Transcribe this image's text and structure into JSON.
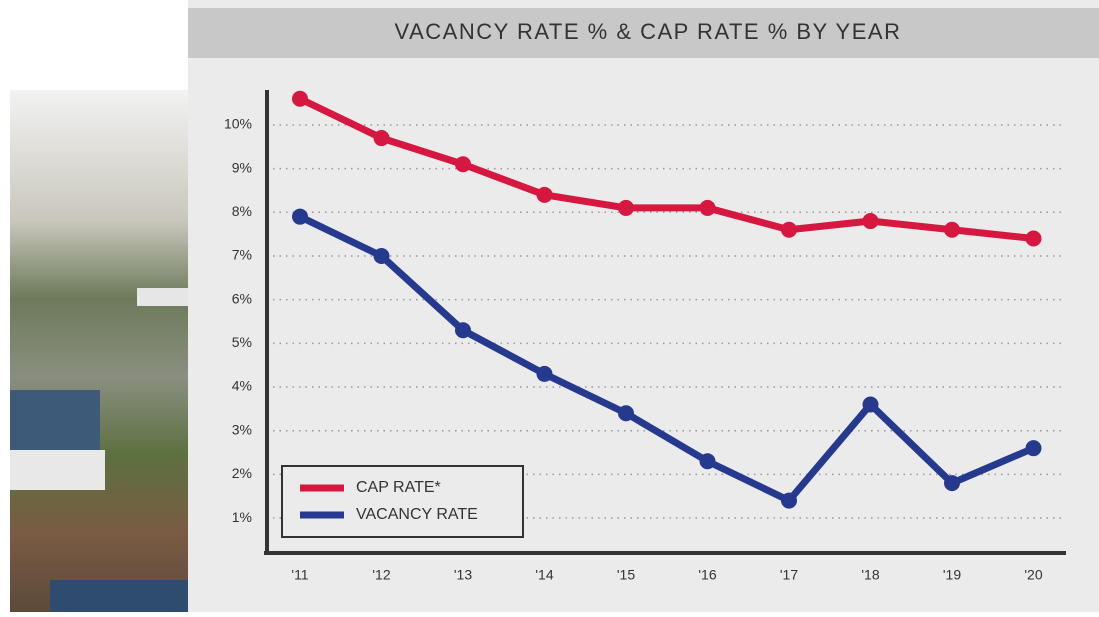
{
  "chart_data": {
    "type": "line",
    "title": "VACANCY RATE % & CAP RATE % BY YEAR",
    "categories": [
      "'11",
      "'12",
      "'13",
      "'14",
      "'15",
      "'16",
      "'17",
      "'18",
      "'19",
      "'20"
    ],
    "series": [
      {
        "name": "CAP RATE*",
        "color": "#d6173f",
        "values": [
          10.6,
          9.7,
          9.1,
          8.4,
          8.1,
          8.1,
          7.6,
          7.8,
          7.6,
          7.4
        ]
      },
      {
        "name": "VACANCY RATE",
        "color": "#253a8e",
        "values": [
          7.9,
          7.0,
          5.3,
          4.3,
          3.4,
          2.3,
          1.4,
          3.6,
          1.8,
          2.6
        ]
      }
    ],
    "ylim": [
      0.2,
      10.8
    ],
    "yticks": [
      {
        "value": 1,
        "label": "1%"
      },
      {
        "value": 2,
        "label": "2%"
      },
      {
        "value": 3,
        "label": "3%"
      },
      {
        "value": 4,
        "label": "4%"
      },
      {
        "value": 5,
        "label": "5%"
      },
      {
        "value": 6,
        "label": "6%"
      },
      {
        "value": 7,
        "label": "7%"
      },
      {
        "value": 8,
        "label": "8%"
      },
      {
        "value": 9,
        "label": "9%"
      },
      {
        "value": 10,
        "label": "10%"
      }
    ],
    "grid": true,
    "legend": "bottom-left"
  }
}
